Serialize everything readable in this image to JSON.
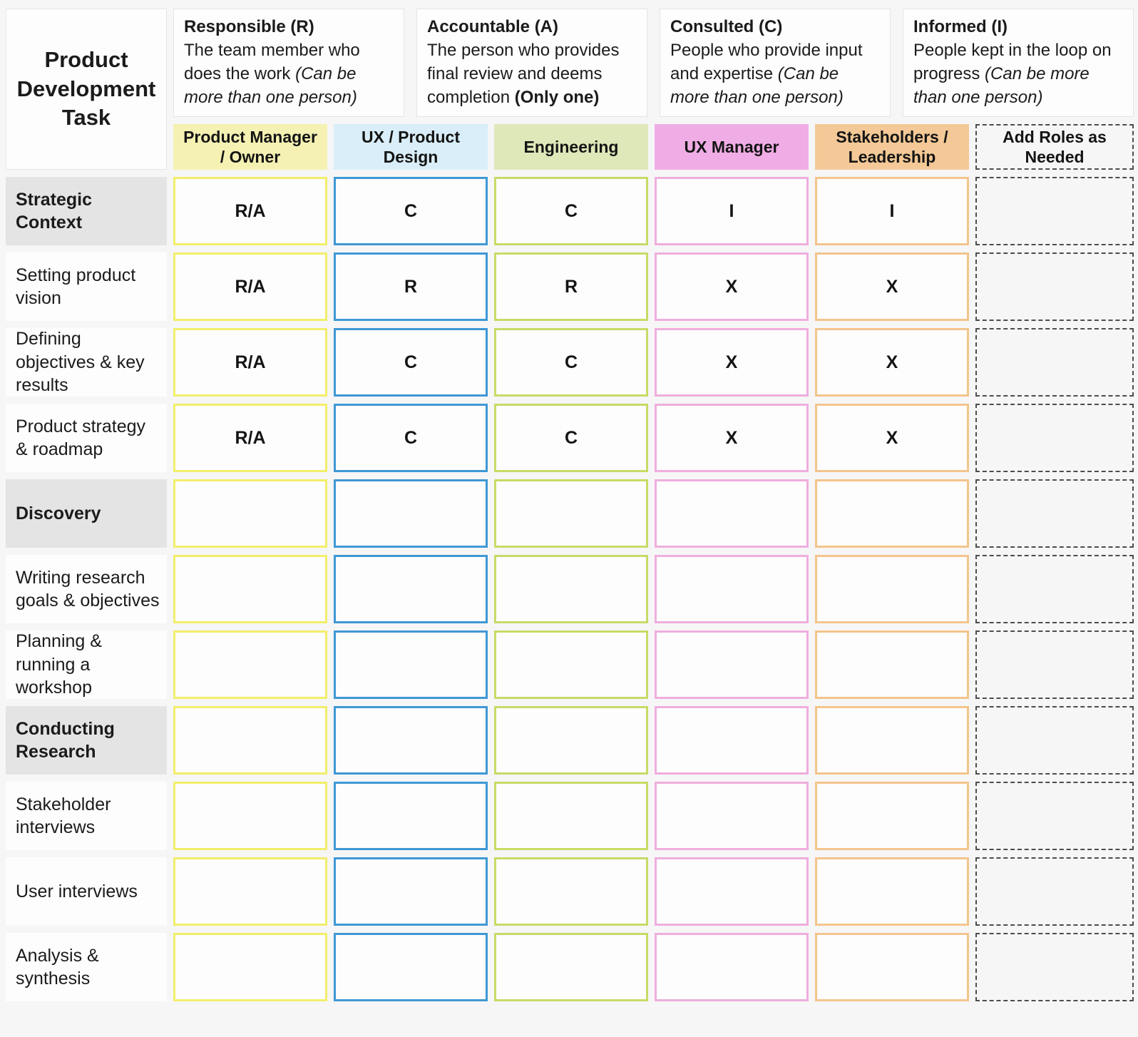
{
  "colors": {
    "page_bg": "#f6f6f7",
    "cell_bg": "#fdfdfe",
    "section_row_bg": "#e4e4e4",
    "pm_header_bg": "#f5f1b3",
    "pm_cell_border": "#f2ee6a",
    "ux_header_bg": "#d9eef8",
    "ux_cell_border": "#3f98d4",
    "eng_header_bg": "#dee8b9",
    "eng_cell_border": "#c7db66",
    "uxm_header_bg": "#f0ade5",
    "uxm_cell_border": "#efaedd",
    "stake_header_bg": "#f4c997",
    "stake_cell_border": "#f4c48c",
    "add_roles_dashed_border": "#4d4d4d"
  },
  "corner": {
    "title": "Product Development Task"
  },
  "legend": [
    {
      "title": "Responsible (R)",
      "body": "The team member who does the work",
      "italic_note": "(Can be more than one person)",
      "bold_note": ""
    },
    {
      "title": "Accountable (A)",
      "body": "The person who provides final review and deems completion",
      "italic_note": "",
      "bold_note": "(Only one)"
    },
    {
      "title": "Consulted (C)",
      "body": "People who provide input and expertise",
      "italic_note": "(Can be more than one person)",
      "bold_note": ""
    },
    {
      "title": "Informed (I)",
      "body": "People kept in the loop on progress",
      "italic_note": "(Can be more than one person)",
      "bold_note": ""
    }
  ],
  "columns": [
    {
      "label": "Product Manager / Owner"
    },
    {
      "label": "UX / Product Design"
    },
    {
      "label": "Engineering"
    },
    {
      "label": "UX Manager"
    },
    {
      "label": "Stakeholders / Leadership"
    },
    {
      "label": "Add Roles as Needed"
    }
  ],
  "rows": [
    {
      "label": "Strategic Context",
      "section": true,
      "cells": [
        "R/A",
        "C",
        "C",
        "I",
        "I",
        ""
      ]
    },
    {
      "label": "Setting product vision",
      "section": false,
      "cells": [
        "R/A",
        "R",
        "R",
        "X",
        "X",
        ""
      ]
    },
    {
      "label": "Defining objectives & key results",
      "section": false,
      "cells": [
        "R/A",
        "C",
        "C",
        "X",
        "X",
        ""
      ]
    },
    {
      "label": "Product strategy & roadmap",
      "section": false,
      "cells": [
        "R/A",
        "C",
        "C",
        "X",
        "X",
        ""
      ]
    },
    {
      "label": "Discovery",
      "section": true,
      "cells": [
        "",
        "",
        "",
        "",
        "",
        ""
      ]
    },
    {
      "label": "Writing research goals & objectives",
      "section": false,
      "cells": [
        "",
        "",
        "",
        "",
        "",
        ""
      ]
    },
    {
      "label": "Planning & running a workshop",
      "section": false,
      "cells": [
        "",
        "",
        "",
        "",
        "",
        ""
      ]
    },
    {
      "label": "Conducting Research",
      "section": true,
      "cells": [
        "",
        "",
        "",
        "",
        "",
        ""
      ]
    },
    {
      "label": "Stakeholder interviews",
      "section": false,
      "cells": [
        "",
        "",
        "",
        "",
        "",
        ""
      ]
    },
    {
      "label": "User interviews",
      "section": false,
      "cells": [
        "",
        "",
        "",
        "",
        "",
        ""
      ]
    },
    {
      "label": "Analysis & synthesis",
      "section": false,
      "cells": [
        "",
        "",
        "",
        "",
        "",
        ""
      ]
    }
  ]
}
